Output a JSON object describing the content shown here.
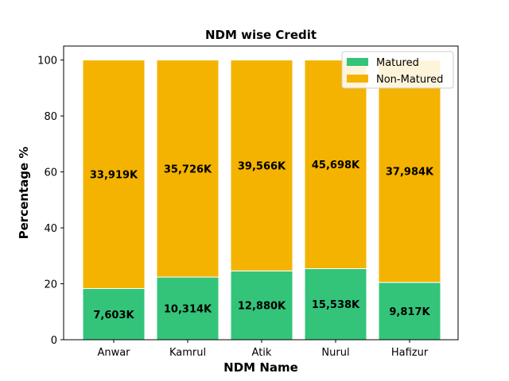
{
  "chart_data": {
    "type": "bar",
    "stacked": true,
    "title": "NDM wise Credit",
    "xlabel": "NDM Name",
    "ylabel": "Percentage %",
    "categories": [
      "Anwar",
      "Kamrul",
      "Atik",
      "Nurul",
      "Hafizur"
    ],
    "ylim": [
      0,
      105
    ],
    "yticks": [
      0,
      20,
      40,
      60,
      80,
      100
    ],
    "grid": false,
    "legend_position": "top-right",
    "series": [
      {
        "name": "Matured",
        "color": "#33c47a",
        "values": [
          18.3,
          22.4,
          24.6,
          25.4,
          20.5
        ],
        "labels": [
          "7,603K",
          "10,314K",
          "12,880K",
          "15,538K",
          "9,817K"
        ]
      },
      {
        "name": "Non-Matured",
        "color": "#f3b300",
        "values": [
          81.7,
          77.6,
          75.4,
          74.6,
          79.5
        ],
        "labels": [
          "33,919K",
          "35,726K",
          "39,566K",
          "45,698K",
          "37,984K"
        ]
      }
    ]
  }
}
